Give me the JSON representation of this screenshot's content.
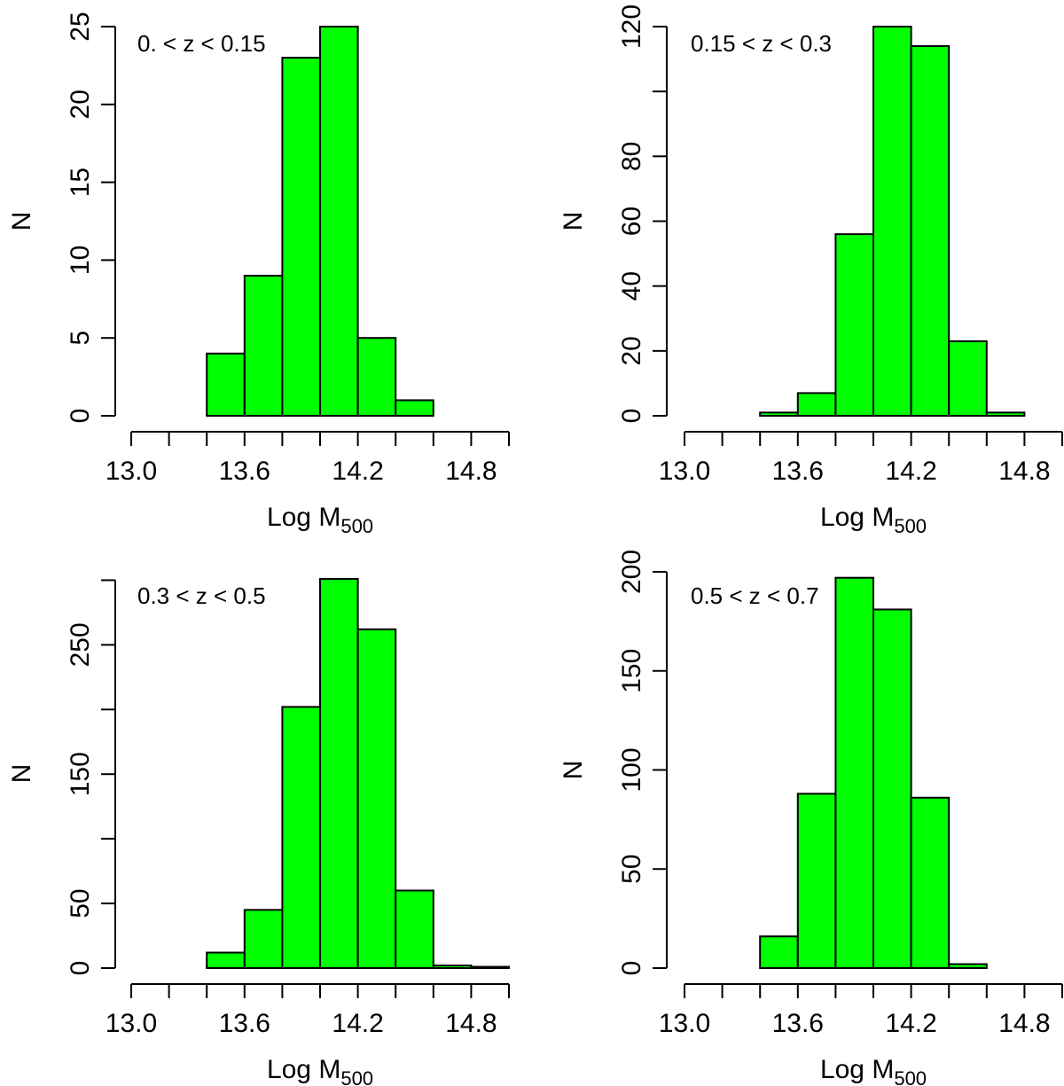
{
  "bar_color": "#00ff00",
  "chart_data": [
    {
      "type": "bar",
      "annotation": "0. < z < 0.15",
      "xlabel_main": "Log M",
      "xlabel_sub": "500",
      "ylabel": "N",
      "bin_edges": [
        13.0,
        13.2,
        13.4,
        13.6,
        13.8,
        14.0,
        14.2,
        14.4,
        14.6,
        14.8,
        15.0
      ],
      "values": [
        0,
        0,
        4,
        9,
        23,
        25,
        5,
        1,
        0,
        0
      ],
      "xlim": [
        13.0,
        15.0
      ],
      "ylim": [
        0,
        25
      ],
      "xticks": [
        13.0,
        13.2,
        13.4,
        13.6,
        13.8,
        14.0,
        14.2,
        14.4,
        14.6,
        14.8,
        15.0
      ],
      "xtick_labels": [
        {
          "value": 13.0,
          "label": "13.0"
        },
        {
          "value": 13.6,
          "label": "13.6"
        },
        {
          "value": 14.2,
          "label": "14.2"
        },
        {
          "value": 14.8,
          "label": "14.8"
        }
      ],
      "yticks": [
        {
          "value": 0,
          "label": "0"
        },
        {
          "value": 5,
          "label": "5"
        },
        {
          "value": 10,
          "label": "10"
        },
        {
          "value": 15,
          "label": "15"
        },
        {
          "value": 20,
          "label": "20"
        },
        {
          "value": 25,
          "label": "25"
        }
      ]
    },
    {
      "type": "bar",
      "annotation": "0.15 < z < 0.3",
      "xlabel_main": "Log M",
      "xlabel_sub": "500",
      "ylabel": "N",
      "bin_edges": [
        13.0,
        13.2,
        13.4,
        13.6,
        13.8,
        14.0,
        14.2,
        14.4,
        14.6,
        14.8,
        15.0
      ],
      "values": [
        0,
        0,
        1,
        7,
        56,
        120,
        114,
        23,
        1,
        0
      ],
      "xlim": [
        13.0,
        15.0
      ],
      "ylim": [
        0,
        120
      ],
      "xticks": [
        13.0,
        13.2,
        13.4,
        13.6,
        13.8,
        14.0,
        14.2,
        14.4,
        14.6,
        14.8,
        15.0
      ],
      "xtick_labels": [
        {
          "value": 13.0,
          "label": "13.0"
        },
        {
          "value": 13.6,
          "label": "13.6"
        },
        {
          "value": 14.2,
          "label": "14.2"
        },
        {
          "value": 14.8,
          "label": "14.8"
        }
      ],
      "yticks": [
        {
          "value": 0,
          "label": "0"
        },
        {
          "value": 20,
          "label": "20"
        },
        {
          "value": 40,
          "label": "40"
        },
        {
          "value": 60,
          "label": "60"
        },
        {
          "value": 80,
          "label": "80"
        },
        {
          "value": 100,
          "label": ""
        },
        {
          "value": 120,
          "label": "120"
        }
      ]
    },
    {
      "type": "bar",
      "annotation": "0.3 < z < 0.5",
      "xlabel_main": "Log M",
      "xlabel_sub": "500",
      "ylabel": "N",
      "bin_edges": [
        13.0,
        13.2,
        13.4,
        13.6,
        13.8,
        14.0,
        14.2,
        14.4,
        14.6,
        14.8,
        15.0
      ],
      "values": [
        0,
        0,
        12,
        45,
        202,
        301,
        262,
        60,
        2,
        1
      ],
      "xlim": [
        13.0,
        15.0
      ],
      "ylim": [
        0,
        301
      ],
      "xticks": [
        13.0,
        13.2,
        13.4,
        13.6,
        13.8,
        14.0,
        14.2,
        14.4,
        14.6,
        14.8,
        15.0
      ],
      "xtick_labels": [
        {
          "value": 13.0,
          "label": "13.0"
        },
        {
          "value": 13.6,
          "label": "13.6"
        },
        {
          "value": 14.2,
          "label": "14.2"
        },
        {
          "value": 14.8,
          "label": "14.8"
        }
      ],
      "yticks": [
        {
          "value": 0,
          "label": "0"
        },
        {
          "value": 50,
          "label": "50"
        },
        {
          "value": 100,
          "label": ""
        },
        {
          "value": 150,
          "label": "150"
        },
        {
          "value": 200,
          "label": ""
        },
        {
          "value": 250,
          "label": "250"
        },
        {
          "value": 300,
          "label": ""
        }
      ]
    },
    {
      "type": "bar",
      "annotation": "0.5 < z < 0.7",
      "xlabel_main": "Log M",
      "xlabel_sub": "500",
      "ylabel": "N",
      "bin_edges": [
        13.0,
        13.2,
        13.4,
        13.6,
        13.8,
        14.0,
        14.2,
        14.4,
        14.6,
        14.8,
        15.0
      ],
      "values": [
        0,
        0,
        16,
        88,
        197,
        181,
        86,
        2,
        0,
        0
      ],
      "xlim": [
        13.0,
        15.0
      ],
      "ylim": [
        0,
        200
      ],
      "xticks": [
        13.0,
        13.2,
        13.4,
        13.6,
        13.8,
        14.0,
        14.2,
        14.4,
        14.6,
        14.8,
        15.0
      ],
      "xtick_labels": [
        {
          "value": 13.0,
          "label": "13.0"
        },
        {
          "value": 13.6,
          "label": "13.6"
        },
        {
          "value": 14.2,
          "label": "14.2"
        },
        {
          "value": 14.8,
          "label": "14.8"
        }
      ],
      "yticks": [
        {
          "value": 0,
          "label": "0"
        },
        {
          "value": 50,
          "label": "50"
        },
        {
          "value": 100,
          "label": "100"
        },
        {
          "value": 150,
          "label": "150"
        },
        {
          "value": 200,
          "label": "200"
        }
      ]
    }
  ]
}
